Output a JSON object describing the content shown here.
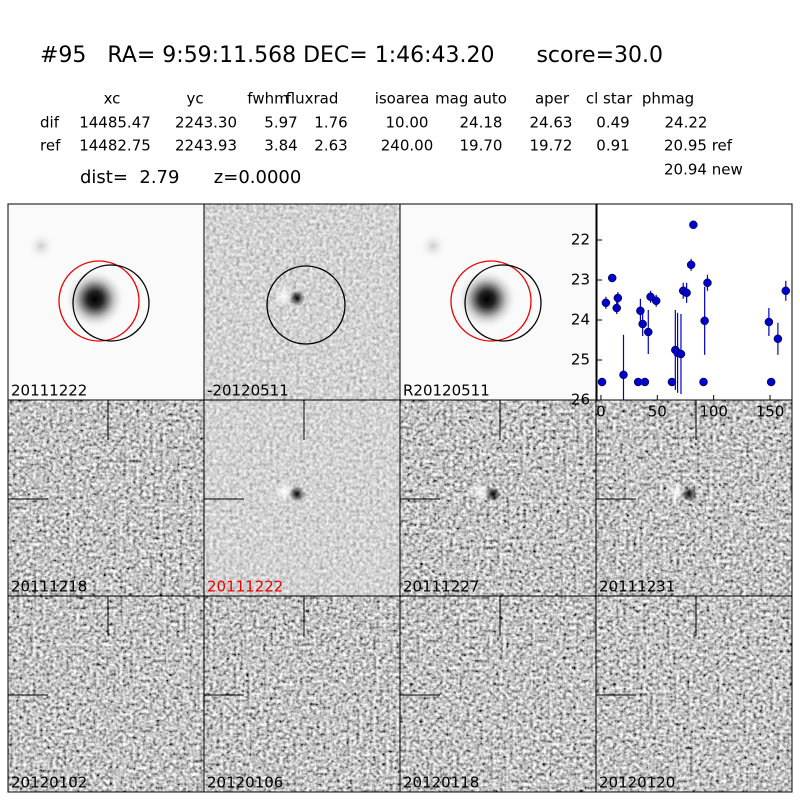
{
  "header": {
    "title": "#95   RA= 9:59:11.568 DEC= 1:46:43.20      score=30.0",
    "dist": "dist=  2.79      z=0.0000",
    "extra": "20.94 new"
  },
  "table": {
    "columns": [
      "xc",
      "yc",
      "fwhm",
      "fluxrad",
      "isoarea",
      "mag auto",
      "aper",
      "cl star",
      "phmag"
    ],
    "rows": [
      [
        "dif",
        "14485.47",
        "2243.30",
        "5.97",
        "1.76",
        "10.00",
        "24.18",
        "24.63",
        "0.49",
        "24.22"
      ],
      [
        "ref",
        "14482.75",
        "2243.93",
        "3.84",
        "2.63",
        "240.00",
        "19.70",
        "19.72",
        "0.91",
        "20.95 ref"
      ]
    ]
  },
  "panels": [
    {
      "label": "20111222"
    },
    {
      "label": "-20120511"
    },
    {
      "label": "R20120511"
    },
    {
      "label": "20111218"
    },
    {
      "label": "20111222"
    },
    {
      "label": "20111227"
    },
    {
      "label": "20111231"
    },
    {
      "label": "20120102"
    },
    {
      "label": "20120106"
    },
    {
      "label": "20120118"
    },
    {
      "label": "20120120"
    }
  ],
  "chart_data": {
    "type": "scatter",
    "x": [
      1,
      4.4,
      10,
      14,
      15,
      20,
      33,
      35,
      37,
      39,
      42,
      44,
      49,
      63,
      66,
      68,
      71,
      73,
      76,
      80,
      82,
      91,
      92,
      94.5,
      149,
      151,
      157,
      164
    ],
    "series": [
      {
        "color": "#0000cc",
        "values": [
          25.55,
          23.57,
          22.95,
          23.7,
          23.45,
          25.37,
          25.55,
          23.77,
          24.1,
          25.55,
          24.3,
          23.42,
          23.52,
          25.55,
          24.75,
          24.82,
          24.85,
          23.27,
          23.32,
          22.62,
          21.62,
          25.55,
          24.02,
          23.07,
          24.05,
          25.55,
          24.47,
          23.27
        ],
        "errors": [
          0.05,
          0.15,
          0.1,
          0.15,
          0.15,
          1.0,
          0.05,
          0.3,
          0.3,
          0.05,
          0.55,
          0.15,
          0.15,
          0.05,
          1.0,
          1.0,
          1.0,
          0.2,
          0.25,
          0.15,
          0.05,
          0.05,
          0.85,
          0.2,
          0.35,
          0.05,
          0.4,
          0.25
        ]
      }
    ],
    "xlim": [
      -3.5,
      169.5
    ],
    "ylim": [
      26,
      21.1
    ],
    "xticks": [
      0,
      50,
      100,
      150
    ],
    "yticks": [
      22,
      23,
      24,
      25,
      26
    ]
  }
}
